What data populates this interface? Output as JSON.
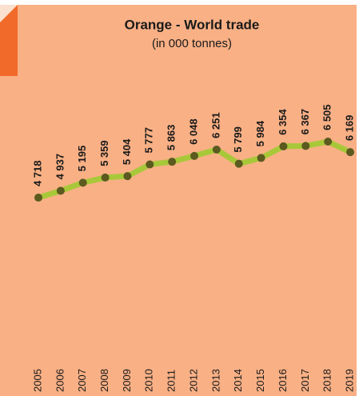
{
  "chart_data": {
    "type": "line",
    "title": "Orange - World trade",
    "subtitle": "(in 000 tonnes)",
    "categories": [
      "2005",
      "2006",
      "2007",
      "2008",
      "2009",
      "2010",
      "2011",
      "2012",
      "2013",
      "2014",
      "2015",
      "2016",
      "2017",
      "2018",
      "2019"
    ],
    "values": [
      4718,
      4937,
      5195,
      5359,
      5404,
      5777,
      5863,
      6048,
      6251,
      5799,
      5984,
      6354,
      6367,
      6505,
      6169
    ],
    "value_labels": [
      "4 718",
      "4 937",
      "5 195",
      "5 359",
      "5 404",
      "5 777",
      "5 863",
      "6 048",
      "6 251",
      "5 799",
      "5 984",
      "6 354",
      "6 367",
      "6 505",
      "6 169"
    ],
    "color": "#a8c83a",
    "marker_color": "#5b5a1f",
    "ylim": [
      0,
      10000
    ]
  }
}
